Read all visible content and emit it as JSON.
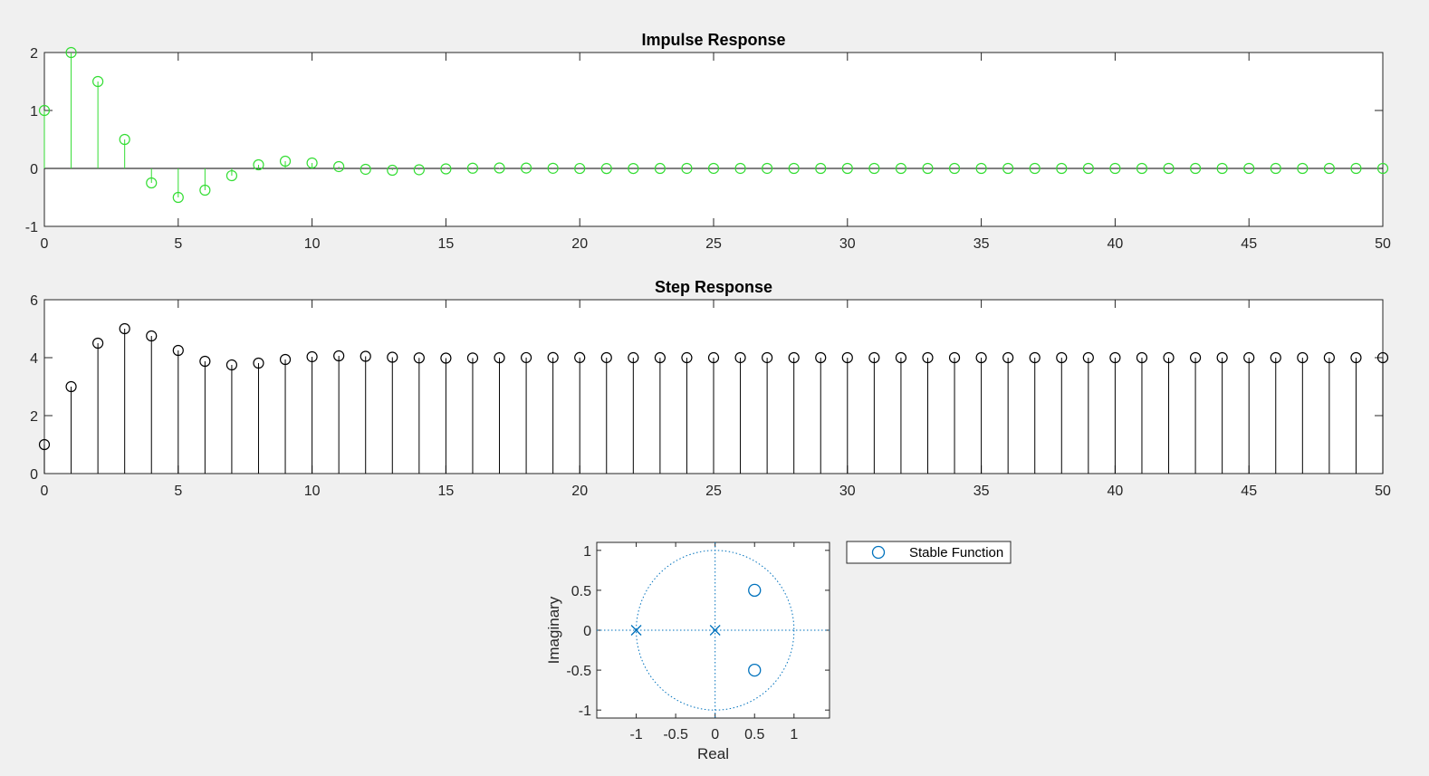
{
  "colors": {
    "background": "#f0f0f0",
    "axes_bg": "#ffffff",
    "axis": "#262626",
    "impulse": "#33dd33",
    "step": "#000000",
    "pz": "#0072bd"
  },
  "chart_data": [
    {
      "type": "stem",
      "title": "Impulse Response",
      "xlabel": "",
      "ylabel": "",
      "xlim": [
        0,
        50
      ],
      "ylim": [
        -1,
        2
      ],
      "xticks": [
        "0",
        "5",
        "10",
        "15",
        "20",
        "25",
        "30",
        "35",
        "40",
        "45",
        "50"
      ],
      "yticks": [
        "-1",
        "0",
        "1",
        "2"
      ],
      "grid": false,
      "marker": "circle",
      "x": [
        0,
        1,
        2,
        3,
        4,
        5,
        6,
        7,
        8,
        9,
        10,
        11,
        12,
        13,
        14,
        15,
        16,
        17,
        18,
        19,
        20,
        21,
        22,
        23,
        24,
        25,
        26,
        27,
        28,
        29,
        30,
        31,
        32,
        33,
        34,
        35,
        36,
        37,
        38,
        39,
        40,
        41,
        42,
        43,
        44,
        45,
        46,
        47,
        48,
        49,
        50
      ],
      "values": [
        1,
        2,
        1.5,
        0.5,
        -0.25,
        -0.5,
        -0.375,
        -0.125,
        0.0625,
        0.125,
        0.0938,
        0.0313,
        -0.0156,
        -0.0313,
        -0.0234,
        -0.0078,
        0.0039,
        0.0078,
        0.0059,
        0.002,
        -0.001,
        -0.002,
        -0.0015,
        -0.0005,
        0.0002,
        0.0005,
        0.0004,
        0.0001,
        0,
        0,
        0,
        0,
        0,
        0,
        0,
        0,
        0,
        0,
        0,
        0,
        0,
        0,
        0,
        0,
        0,
        0,
        0,
        0,
        0,
        0,
        0
      ]
    },
    {
      "type": "stem",
      "title": "Step Response",
      "xlabel": "",
      "ylabel": "",
      "xlim": [
        0,
        50
      ],
      "ylim": [
        0,
        6
      ],
      "xticks": [
        "0",
        "5",
        "10",
        "15",
        "20",
        "25",
        "30",
        "35",
        "40",
        "45",
        "50"
      ],
      "yticks": [
        "0",
        "2",
        "4",
        "6"
      ],
      "grid": false,
      "marker": "circle",
      "x": [
        0,
        1,
        2,
        3,
        4,
        5,
        6,
        7,
        8,
        9,
        10,
        11,
        12,
        13,
        14,
        15,
        16,
        17,
        18,
        19,
        20,
        21,
        22,
        23,
        24,
        25,
        26,
        27,
        28,
        29,
        30,
        31,
        32,
        33,
        34,
        35,
        36,
        37,
        38,
        39,
        40,
        41,
        42,
        43,
        44,
        45,
        46,
        47,
        48,
        49,
        50
      ],
      "values": [
        1,
        3,
        4.5,
        5,
        4.75,
        4.25,
        3.875,
        3.75,
        3.8125,
        3.9375,
        4.0313,
        4.0625,
        4.0469,
        4.0156,
        3.9922,
        3.9844,
        3.9883,
        3.9961,
        4.002,
        4.0039,
        4.0029,
        4.001,
        3.9995,
        3.999,
        3.9993,
        3.9998,
        4.0001,
        4.0002,
        4,
        4,
        4,
        4,
        4,
        4,
        4,
        4,
        4,
        4,
        4,
        4,
        4,
        4,
        4,
        4,
        4,
        4,
        4,
        4,
        4,
        4,
        4
      ]
    },
    {
      "type": "scatter",
      "title": "",
      "xlabel": "Real",
      "ylabel": "Imaginary",
      "xlim": [
        -1.5,
        1.45
      ],
      "ylim": [
        -1.1,
        1.1
      ],
      "xticks": [
        "-1",
        "-0.5",
        "0",
        "0.5",
        "1"
      ],
      "yticks": [
        "-1",
        "-0.5",
        "0",
        "0.5",
        "1"
      ],
      "grid": false,
      "unit_circle": true,
      "legend": {
        "placement": "outside-right",
        "entries": [
          "Stable Function"
        ]
      },
      "zeros": [
        {
          "re": 0.5,
          "im": 0.5
        },
        {
          "re": 0.5,
          "im": -0.5
        }
      ],
      "poles": [
        {
          "re": -1,
          "im": 0
        },
        {
          "re": 0,
          "im": 0
        }
      ]
    }
  ]
}
